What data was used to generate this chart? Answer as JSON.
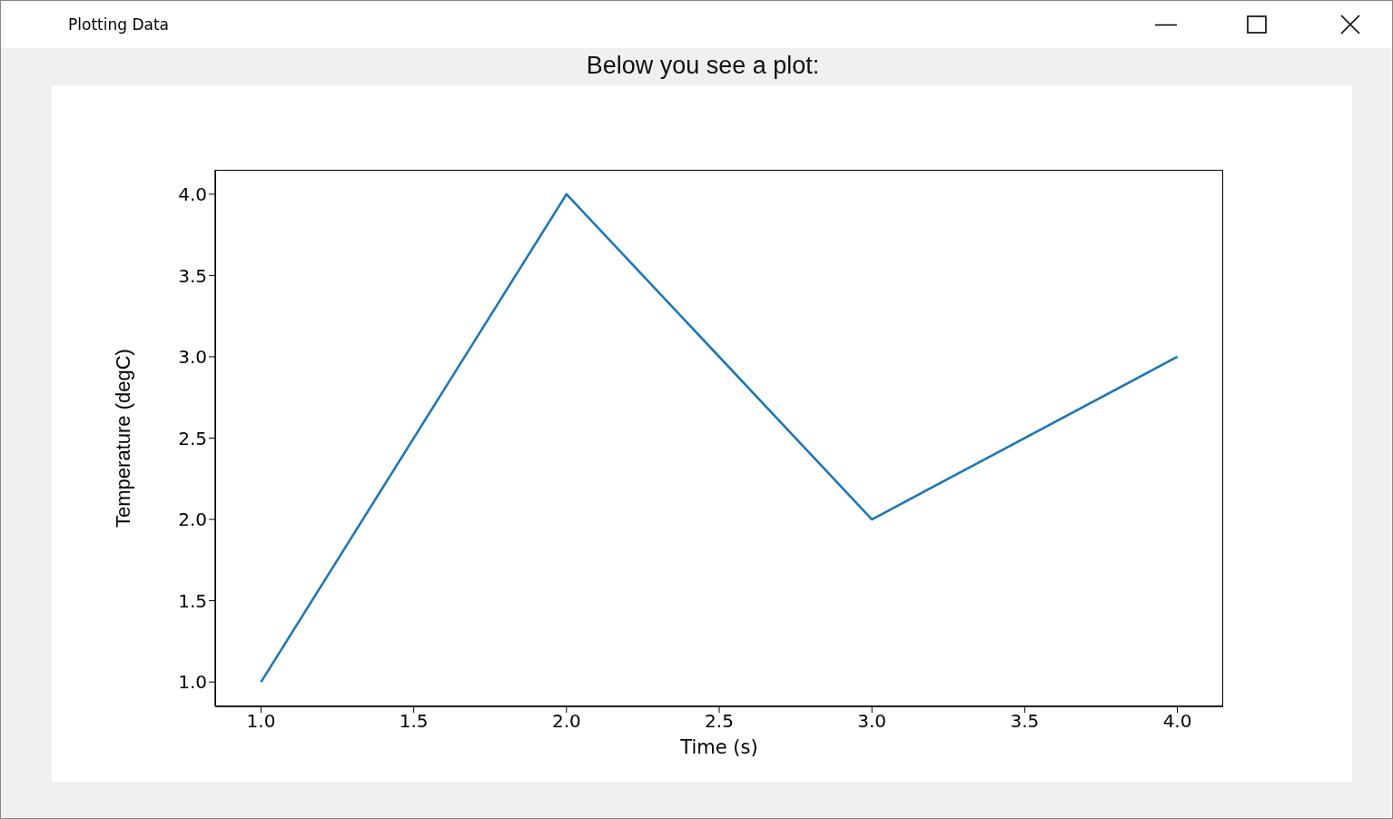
{
  "chart_data": {
    "type": "line",
    "title": "Plotting Data",
    "subtitle": "Below you see a plot:",
    "xlabel": "Time (s)",
    "ylabel": "Temperature (degC)",
    "x": [
      1,
      2,
      3,
      4
    ],
    "series": [
      {
        "color": "#1f77b4",
        "values": [
          1,
          4,
          2,
          3
        ]
      }
    ],
    "xlim": [
      0.85,
      4.15
    ],
    "ylim": [
      0.85,
      4.15
    ],
    "xticks": [
      {
        "value": 1,
        "label": "1.0"
      },
      {
        "value": 1.5,
        "label": "1.5"
      },
      {
        "value": 2,
        "label": "2.0"
      },
      {
        "value": 2.5,
        "label": "2.5"
      },
      {
        "value": 3,
        "label": "3.0"
      },
      {
        "value": 3.5,
        "label": "3.5"
      },
      {
        "value": 4,
        "label": "4.0"
      }
    ],
    "yticks": [
      {
        "value": 1,
        "label": "1.0"
      },
      {
        "value": 1.5,
        "label": "1.5"
      },
      {
        "value": 2,
        "label": "2.0"
      },
      {
        "value": 2.5,
        "label": "2.5"
      },
      {
        "value": 3,
        "label": "3.0"
      },
      {
        "value": 3.5,
        "label": "3.5"
      },
      {
        "value": 4,
        "label": "4.0"
      }
    ],
    "grid": false,
    "legend": false,
    "marker": "none",
    "line_style": "solid"
  }
}
